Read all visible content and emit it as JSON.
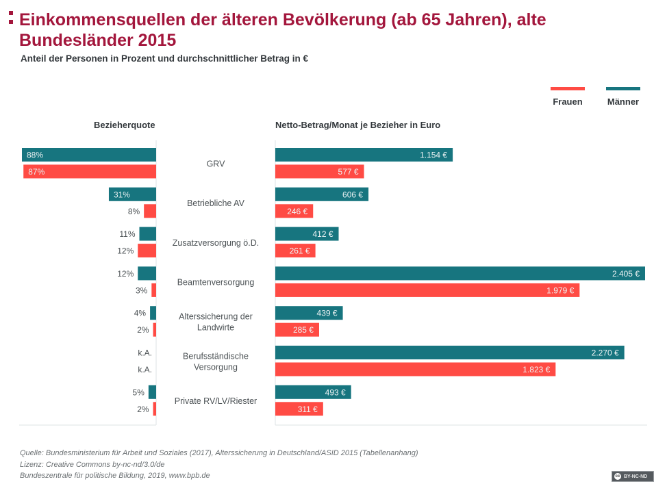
{
  "header": {
    "title": "Einkommensquellen der älteren Bevölkerung (ab 65 Jahren), alte Bundesländer 2015",
    "subtitle": "Anteil der Personen in Prozent und durchschnittlicher Betrag in €"
  },
  "legend": {
    "women": {
      "label": "Frauen",
      "color": "#ff4b44"
    },
    "men": {
      "label": "Männer",
      "color": "#17757f"
    }
  },
  "panels": {
    "left_title": "Bezieherquote",
    "right_title": "Netto-Betrag/Monat je Bezieher in Euro"
  },
  "chart_data": {
    "type": "bar",
    "orientation": "horizontal",
    "title": "Einkommensquellen der älteren Bevölkerung (ab 65 Jahren), alte Bundesländer 2015",
    "subtitle": "Anteil der Personen in Prozent und durchschnittlicher Betrag in €",
    "categories": [
      "GRV",
      "Betriebliche AV",
      "Zusatzversorgung ö.D.",
      "Beamtenversorgung",
      "Alterssicherung der Landwirte",
      "Berufsständische Versorgung",
      "Private RV/LV/Riester"
    ],
    "legend": [
      "Frauen",
      "Männer"
    ],
    "legend_position": "top-right",
    "grid": false,
    "panels": [
      {
        "name": "Bezieherquote",
        "unit": "%",
        "direction": "left",
        "xlim": [
          0,
          88
        ],
        "series": [
          {
            "name": "Männer",
            "color": "#17757f",
            "values": [
              88,
              31,
              11,
              12,
              4,
              null,
              5
            ],
            "labels": [
              "88%",
              "31%",
              "11%",
              "12%",
              "4%",
              "k.A.",
              "5%"
            ]
          },
          {
            "name": "Frauen",
            "color": "#ff4b44",
            "values": [
              87,
              8,
              12,
              3,
              2,
              null,
              2
            ],
            "labels": [
              "87%",
              "8%",
              "12%",
              "3%",
              "2%",
              "k.A.",
              "2%"
            ]
          }
        ]
      },
      {
        "name": "Netto-Betrag/Monat je Bezieher in Euro",
        "unit": "€",
        "direction": "right",
        "xlim": [
          0,
          2405
        ],
        "series": [
          {
            "name": "Männer",
            "color": "#17757f",
            "values": [
              1154,
              606,
              412,
              2405,
              439,
              2270,
              493
            ],
            "labels": [
              "1.154 €",
              "606 €",
              "412 €",
              "2.405 €",
              "439 €",
              "2.270 €",
              "493 €"
            ]
          },
          {
            "name": "Frauen",
            "color": "#ff4b44",
            "values": [
              577,
              246,
              261,
              1979,
              285,
              1823,
              311
            ],
            "labels": [
              "577 €",
              "246 €",
              "261 €",
              "1.979 €",
              "285 €",
              "1.823 €",
              "311 €"
            ]
          }
        ]
      }
    ]
  },
  "category_labels": [
    [
      "GRV"
    ],
    [
      "Betriebliche AV"
    ],
    [
      "Zusatzversorgung ö.D."
    ],
    [
      "Beamtenversorgung"
    ],
    [
      "Alterssicherung der",
      "Landwirte"
    ],
    [
      "Berufsständische",
      "Versorgung"
    ],
    [
      "Private RV/LV/Riester"
    ]
  ],
  "footer": {
    "source": "Quelle: Bundesministerium für Arbeit und Soziales (2017), Alterssicherung in Deutschland/ASID 2015 (Tabellenanhang)",
    "license": "Lizenz: Creative Commons by-nc-nd/3.0/de",
    "publisher": "Bundeszentrale für politische Bildung, 2019, www.bpb.de",
    "badge": {
      "icon": "cc",
      "label": "BY-NC-ND"
    }
  }
}
